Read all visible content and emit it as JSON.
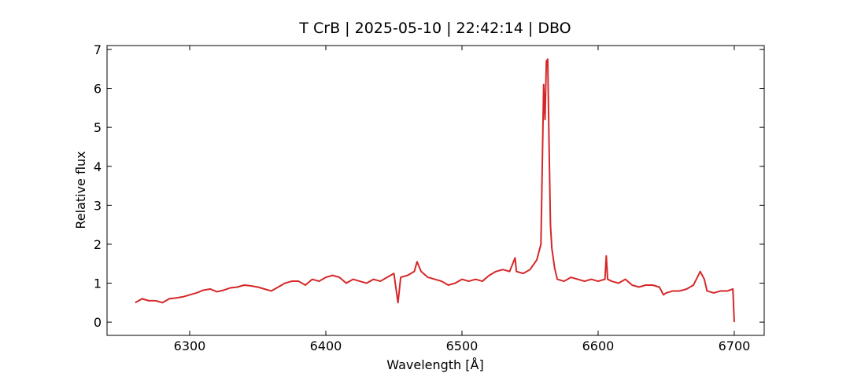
{
  "chart_data": {
    "type": "line",
    "title": "T CrB | 2025-05-10 | 22:42:14 | DBO",
    "xlabel": "Wavelength [Å]",
    "ylabel": "Relative flux",
    "xlim": [
      6239.3,
      6722
    ],
    "ylim": [
      -0.34,
      7.1
    ],
    "xticks": [
      6300,
      6400,
      6500,
      6600,
      6700
    ],
    "yticks": [
      0,
      1,
      2,
      3,
      4,
      5,
      6,
      7
    ],
    "series": [
      {
        "color": "#d62728",
        "x": [
          6260,
          6265,
          6270,
          6275,
          6280,
          6285,
          6290,
          6295,
          6300,
          6305,
          6310,
          6315,
          6320,
          6325,
          6330,
          6335,
          6340,
          6345,
          6350,
          6355,
          6360,
          6365,
          6370,
          6375,
          6380,
          6385,
          6390,
          6395,
          6400,
          6405,
          6410,
          6415,
          6420,
          6425,
          6430,
          6435,
          6440,
          6445,
          6450,
          6453,
          6455,
          6460,
          6465,
          6467,
          6470,
          6475,
          6480,
          6485,
          6490,
          6495,
          6500,
          6505,
          6510,
          6515,
          6520,
          6525,
          6530,
          6535,
          6539,
          6540,
          6545,
          6550,
          6555,
          6558,
          6560,
          6561,
          6562,
          6563,
          6564,
          6565,
          6566,
          6568,
          6570,
          6575,
          6580,
          6585,
          6590,
          6595,
          6600,
          6605,
          6606,
          6607,
          6610,
          6615,
          6620,
          6625,
          6630,
          6635,
          6640,
          6645,
          6648,
          6650,
          6655,
          6660,
          6665,
          6670,
          6675,
          6678,
          6680,
          6685,
          6690,
          6695,
          6699,
          6700
        ],
        "values": [
          0.5,
          0.6,
          0.55,
          0.55,
          0.5,
          0.6,
          0.62,
          0.65,
          0.7,
          0.75,
          0.82,
          0.85,
          0.78,
          0.82,
          0.88,
          0.9,
          0.95,
          0.93,
          0.9,
          0.85,
          0.8,
          0.9,
          1.0,
          1.05,
          1.05,
          0.95,
          1.1,
          1.05,
          1.15,
          1.2,
          1.15,
          1.0,
          1.1,
          1.05,
          1.0,
          1.1,
          1.05,
          1.15,
          1.25,
          0.5,
          1.15,
          1.2,
          1.3,
          1.55,
          1.3,
          1.15,
          1.1,
          1.05,
          0.95,
          1.0,
          1.1,
          1.05,
          1.1,
          1.05,
          1.2,
          1.3,
          1.35,
          1.3,
          1.65,
          1.3,
          1.25,
          1.35,
          1.6,
          2.0,
          6.1,
          5.2,
          6.7,
          6.75,
          4.5,
          2.5,
          1.9,
          1.4,
          1.1,
          1.05,
          1.15,
          1.1,
          1.05,
          1.1,
          1.05,
          1.1,
          1.7,
          1.1,
          1.05,
          1.0,
          1.1,
          0.95,
          0.9,
          0.95,
          0.95,
          0.9,
          0.7,
          0.75,
          0.8,
          0.8,
          0.85,
          0.95,
          1.3,
          1.1,
          0.8,
          0.75,
          0.8,
          0.8,
          0.85,
          0.0
        ]
      }
    ]
  }
}
